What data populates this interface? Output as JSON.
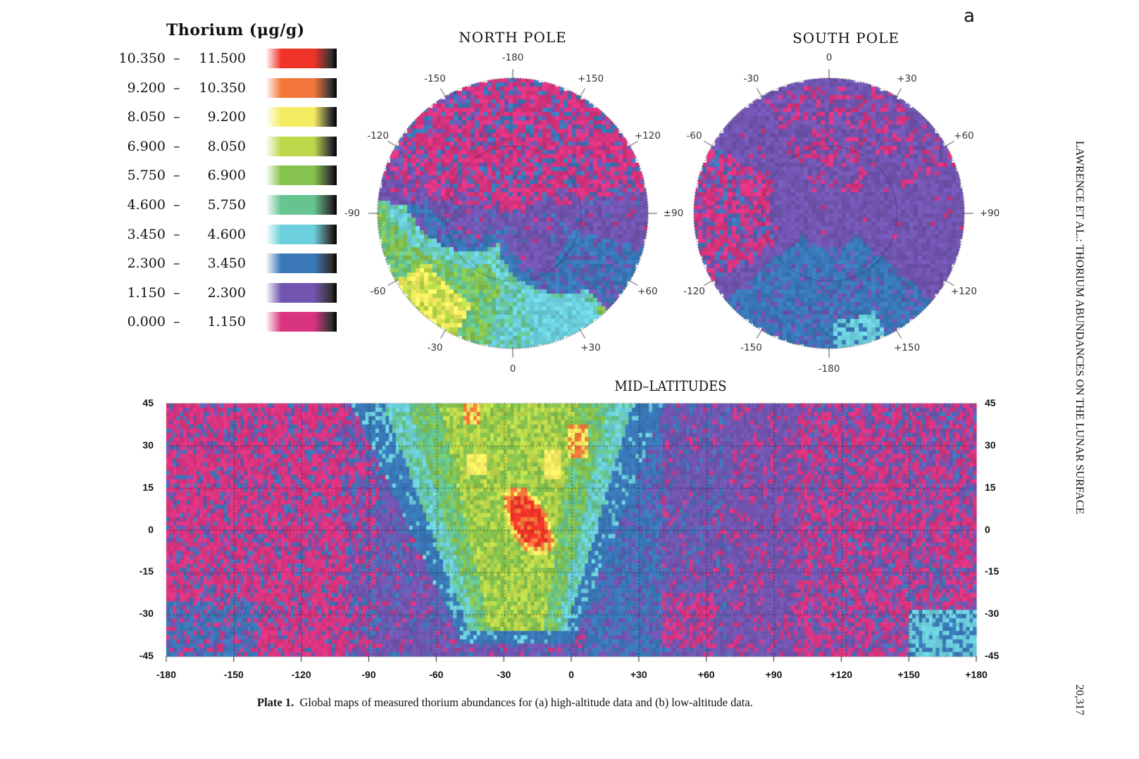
{
  "panel_letter": "a",
  "legend": {
    "title": "Thorium (μg/g)",
    "dash": "–",
    "rows": [
      {
        "low": "10.350",
        "high": "11.500",
        "color": "#ef3328"
      },
      {
        "low": "9.200",
        "high": "10.350",
        "color": "#f3773a"
      },
      {
        "low": "8.050",
        "high": "9.200",
        "color": "#f4ec62"
      },
      {
        "low": "6.900",
        "high": "8.050",
        "color": "#bcd84a"
      },
      {
        "low": "5.750",
        "high": "6.900",
        "color": "#86c24e"
      },
      {
        "low": "4.600",
        "high": "5.750",
        "color": "#66c490"
      },
      {
        "low": "3.450",
        "high": "4.600",
        "color": "#6ccfdc"
      },
      {
        "low": "2.300",
        "high": "3.450",
        "color": "#3a78b8"
      },
      {
        "low": "1.150",
        "high": "2.300",
        "color": "#7155b0"
      },
      {
        "low": "0.000",
        "high": "1.150",
        "color": "#d9347f"
      }
    ]
  },
  "north_pole": {
    "title": "NORTH POLE",
    "labels": [
      "-180",
      "+150",
      "+120",
      "±90",
      "+60",
      "+30",
      "0",
      "-30",
      "-60",
      "-90",
      "-120",
      "-150"
    ]
  },
  "south_pole": {
    "title": "SOUTH POLE",
    "labels": [
      "0",
      "+30",
      "+60",
      "+90",
      "+120",
      "+150",
      "-180",
      "-150",
      "-120",
      "-60",
      "-30"
    ]
  },
  "mid_latitudes": {
    "title": "MID–LATITUDES",
    "lat_ticks": [
      "45",
      "30",
      "15",
      "0",
      "-15",
      "-30",
      "-45"
    ],
    "lon_ticks": [
      "-180",
      "-150",
      "-120",
      "-90",
      "-60",
      "-30",
      "0",
      "+30",
      "+60",
      "+90",
      "+120",
      "+150",
      "+180"
    ]
  },
  "caption": {
    "label": "Plate 1.",
    "text": "Global maps of measured thorium abundances for (a) high-altitude data and (b) low-altitude data."
  },
  "running_head": "LAWRENCE ET AL.: THORIUM ABUNDANCES ON THE LUNAR SURFACE",
  "page_number": "20,317"
}
